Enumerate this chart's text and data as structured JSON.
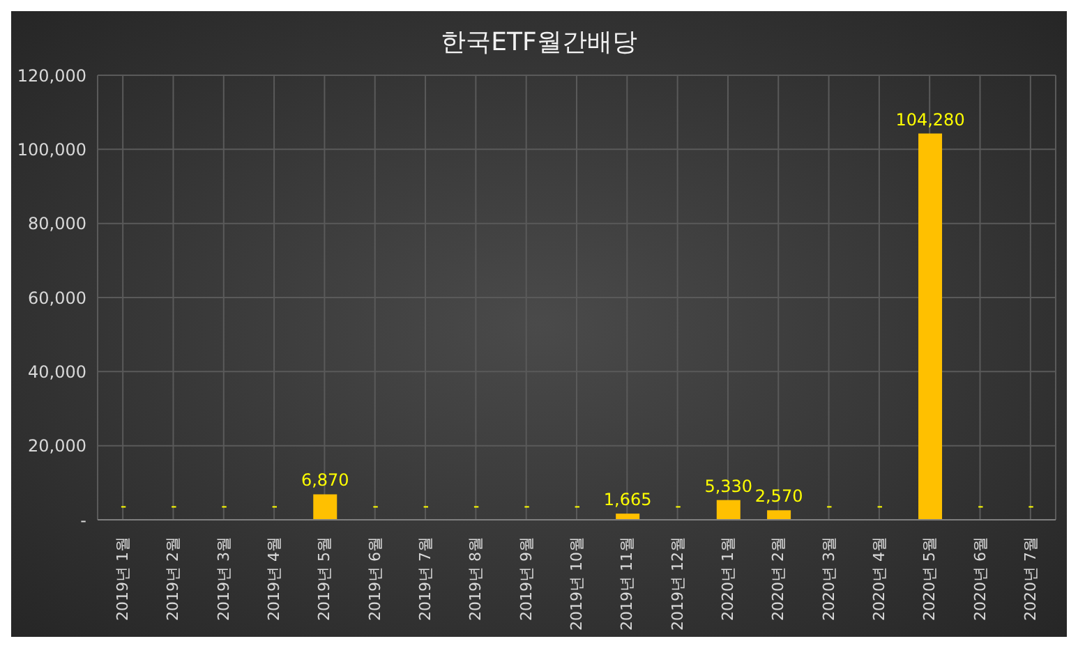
{
  "chart_data": {
    "type": "bar",
    "title": "한국ETF월간배당",
    "categories": [
      "2019년 1월",
      "2019년 2월",
      "2019년 3월",
      "2019년 4월",
      "2019년 5월",
      "2019년 6월",
      "2019년 7월",
      "2019년 8월",
      "2019년 9월",
      "2019년 10월",
      "2019년 11월",
      "2019년 12월",
      "2020년 1월",
      "2020년 2월",
      "2020년 3월",
      "2020년 4월",
      "2020년 5월",
      "2020년 6월",
      "2020년 7월"
    ],
    "values": [
      0,
      0,
      0,
      0,
      6870,
      0,
      0,
      0,
      0,
      0,
      1665,
      0,
      5330,
      2570,
      0,
      0,
      104280,
      0,
      0
    ],
    "value_labels": [
      "-",
      "-",
      "-",
      "-",
      "6,870",
      "-",
      "-",
      "-",
      "-",
      "-",
      "1,665",
      "-",
      "5,330",
      "2,570",
      "-",
      "-",
      "104,280",
      "-",
      "-"
    ],
    "color": "#ffc000",
    "ylim": [
      0,
      120000
    ],
    "yticks": [
      {
        "value": 0,
        "label": "-"
      },
      {
        "value": 20000,
        "label": "20,000"
      },
      {
        "value": 40000,
        "label": "40,000"
      },
      {
        "value": 60000,
        "label": "60,000"
      },
      {
        "value": 80000,
        "label": "80,000"
      },
      {
        "value": 100000,
        "label": "100,000"
      },
      {
        "value": 120000,
        "label": "120,000"
      }
    ],
    "grid": true,
    "legend": false
  }
}
